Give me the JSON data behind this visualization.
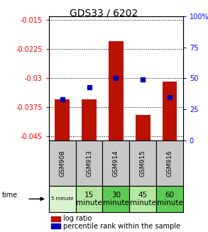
{
  "title": "GDS33 / 6202",
  "samples": [
    "GSM908",
    "GSM913",
    "GSM914",
    "GSM915",
    "GSM916"
  ],
  "times": [
    "5 minute",
    "15\nminute",
    "30\nminute",
    "45\nminute",
    "60\nminute"
  ],
  "time_colors": [
    "#d9f2d0",
    "#b2e8a0",
    "#5dcc55",
    "#b2e8a0",
    "#5dcc55"
  ],
  "log_ratios": [
    -0.0355,
    -0.0355,
    -0.0205,
    -0.0395,
    -0.0308
  ],
  "percentile_ranks": [
    33,
    43,
    50,
    49,
    35
  ],
  "ylim_left": [
    -0.046,
    -0.014
  ],
  "ylim_right": [
    0,
    100
  ],
  "yticks_left": [
    -0.045,
    -0.0375,
    -0.03,
    -0.0225,
    -0.015
  ],
  "yticks_right": [
    0,
    25,
    50,
    75,
    100
  ],
  "bar_color": "#bb1100",
  "dot_color": "#0000bb",
  "sample_box_color": "#c8c8c8",
  "legend_square_size": 8
}
